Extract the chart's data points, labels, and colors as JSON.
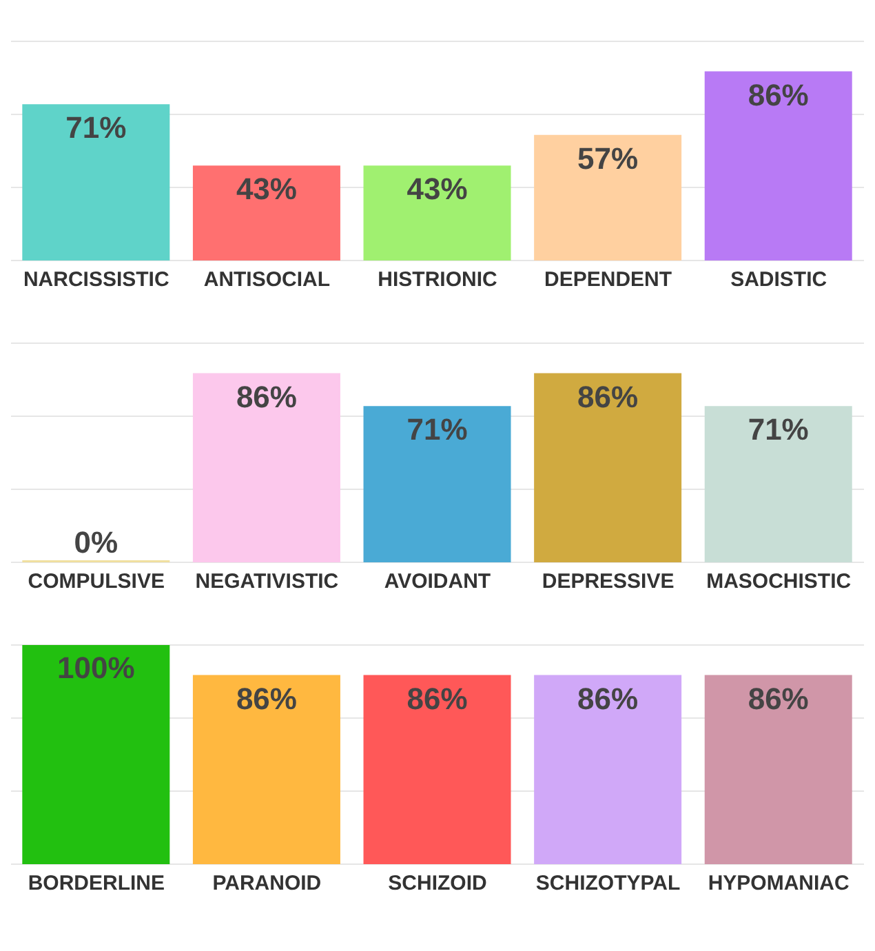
{
  "chart_data": [
    {
      "type": "bar",
      "categories": [
        "NARCISSISTIC",
        "ANTISOCIAL",
        "HISTRIONIC",
        "DEPENDENT",
        "SADISTIC"
      ],
      "values": [
        71,
        43,
        43,
        57,
        86
      ],
      "value_labels": [
        "71%",
        "43%",
        "43%",
        "57%",
        "86%"
      ],
      "colors": [
        "#5fd3c9",
        "#ff7070",
        "#a0f070",
        "#ffd0a0",
        "#b87af5"
      ],
      "ylim": [
        0,
        100
      ],
      "yticks": [
        {
          "value": 0,
          "label": null
        },
        {
          "value": 33.3,
          "label": null
        },
        {
          "value": 66.7,
          "label": null
        },
        {
          "value": 100,
          "label": null
        }
      ],
      "grid": "y",
      "tick_labels": "x"
    },
    {
      "type": "bar",
      "categories": [
        "COMPULSIVE",
        "NEGATIVISTIC",
        "AVOIDANT",
        "DEPRESSIVE",
        "MASOCHISTIC"
      ],
      "values": [
        0,
        86,
        71,
        86,
        71
      ],
      "value_labels": [
        "0%",
        "86%",
        "71%",
        "86%",
        "71%"
      ],
      "colors": [
        "#f0e0a0",
        "#fcc8ec",
        "#4aaad5",
        "#d0aa40",
        "#c8ded6"
      ],
      "ylim": [
        0,
        100
      ],
      "yticks": [
        {
          "value": 0,
          "label": null
        },
        {
          "value": 33.3,
          "label": null
        },
        {
          "value": 66.7,
          "label": null
        },
        {
          "value": 100,
          "label": null
        }
      ],
      "grid": "y",
      "tick_labels": "x"
    },
    {
      "type": "bar",
      "categories": [
        "BORDERLINE",
        "PARANOID",
        "SCHIZOID",
        "SCHIZOTYPAL",
        "HYPOMANIAC"
      ],
      "values": [
        100,
        86,
        86,
        86,
        86
      ],
      "value_labels": [
        "100%",
        "86%",
        "86%",
        "86%",
        "86%"
      ],
      "colors": [
        "#22c010",
        "#ffb840",
        "#ff5858",
        "#d0a8f8",
        "#d096a8"
      ],
      "ylim": [
        0,
        100
      ],
      "yticks": [
        {
          "value": 0,
          "label": null
        },
        {
          "value": 33.3,
          "label": null
        },
        {
          "value": 66.7,
          "label": null
        },
        {
          "value": 100,
          "label": null
        }
      ],
      "grid": "y",
      "tick_labels": "x"
    }
  ]
}
